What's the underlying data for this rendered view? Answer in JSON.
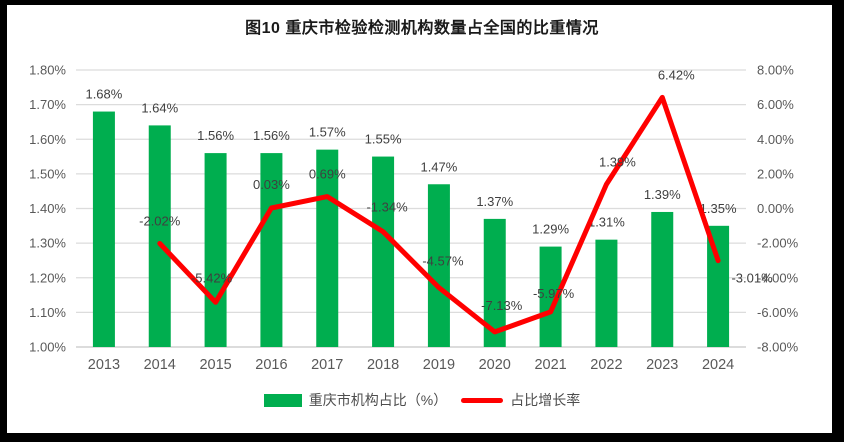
{
  "title": "图10 重庆市检验检测机构数量占全国的比重情况",
  "legend": {
    "bar_label": "重庆市机构占比（%）",
    "line_label": "占比增长率"
  },
  "colors": {
    "bar": "#00AE4F",
    "line": "#FF0000",
    "grid": "#DCDCDC",
    "axis_text": "#595959",
    "data_label_text": "#3F3F3F",
    "frame_border": "#000000"
  },
  "chart_data": {
    "type": "combo",
    "title": "图10 重庆市检验检测机构数量占全国的比重情况",
    "categories": [
      "2013",
      "2014",
      "2015",
      "2016",
      "2017",
      "2018",
      "2019",
      "2020",
      "2021",
      "2022",
      "2023",
      "2024"
    ],
    "series": [
      {
        "name": "重庆市机构占比（%）",
        "type": "bar",
        "axis": "left",
        "color": "#00AE4F",
        "values": [
          1.68,
          1.64,
          1.56,
          1.56,
          1.57,
          1.55,
          1.47,
          1.37,
          1.29,
          1.31,
          1.39,
          1.35
        ],
        "data_labels": [
          "1.68%",
          "1.64%",
          "1.56%",
          "1.56%",
          "1.57%",
          "1.55%",
          "1.47%",
          "1.37%",
          "1.29%",
          "1.31%",
          "1.39%",
          "1.35%"
        ]
      },
      {
        "name": "占比增长率",
        "type": "line",
        "axis": "right",
        "color": "#FF0000",
        "values": [
          null,
          -2.02,
          -5.42,
          0.03,
          0.69,
          -1.34,
          -4.57,
          -7.13,
          -5.97,
          1.39,
          6.42,
          -3.01
        ],
        "data_labels": [
          null,
          "-2.02%",
          "-5.42%",
          "0.03%",
          "0.69%",
          "-1.34%",
          "-4.57%",
          "-7.13%",
          "-5.97%",
          "1.39%",
          "6.42%",
          "-3.01%"
        ]
      }
    ],
    "left_axis": {
      "min": 1.0,
      "max": 1.8,
      "step": 0.1,
      "tick_labels": [
        "1.00%",
        "1.10%",
        "1.20%",
        "1.30%",
        "1.40%",
        "1.50%",
        "1.60%",
        "1.70%",
        "1.80%"
      ]
    },
    "right_axis": {
      "min": -8.0,
      "max": 8.0,
      "step": 2.0,
      "tick_labels": [
        "-8.00%",
        "-6.00%",
        "-4.00%",
        "-2.00%",
        "0.00%",
        "2.00%",
        "4.00%",
        "6.00%",
        "8.00%"
      ]
    },
    "grid": true,
    "legend_position": "bottom"
  }
}
